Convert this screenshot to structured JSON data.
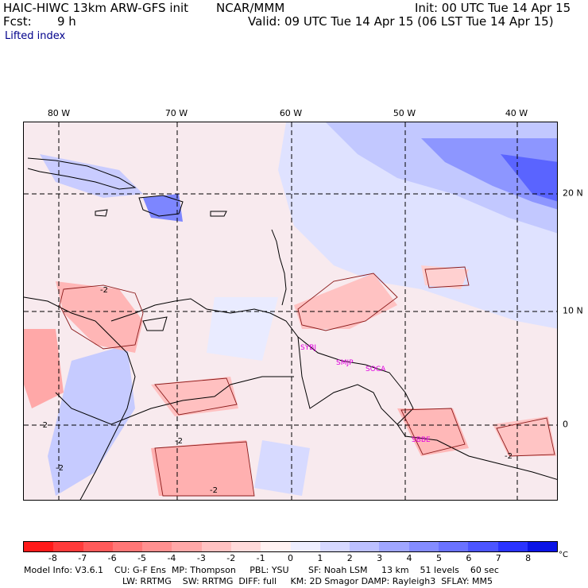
{
  "header": {
    "model": "HAIC-HIWC 13km ARW-GFS init",
    "org": "NCAR/MMM",
    "init": "Init: 00 UTC Tue 14 Apr 15",
    "fcst_label": "Fcst:",
    "fcst_value": "9 h",
    "valid": "Valid: 09 UTC Tue 14 Apr 15 (06 LST Tue 14 Apr 15)",
    "field": "Lifted index"
  },
  "axes": {
    "lon_labels": [
      "80 W",
      "70 W",
      "60 W",
      "50 W",
      "40 W"
    ],
    "lat_labels": [
      "20 N",
      "10 N",
      "0"
    ]
  },
  "contour_labels": [
    "-2",
    "-2",
    "-2",
    "-2",
    "-2",
    "-2"
  ],
  "stations": [
    "SYBJ",
    "SMJP",
    "SOCA",
    "SBBE"
  ],
  "colorbar": {
    "ticks": [
      "-8",
      "-7",
      "-6",
      "-5",
      "-4",
      "-3",
      "-2",
      "-1",
      "0",
      "1",
      "2",
      "3",
      "4",
      "5",
      "6",
      "7",
      "8"
    ],
    "unit": "°C",
    "colors": [
      "#ff1a1a",
      "#ff3b3b",
      "#ff5a5a",
      "#ff7676",
      "#ff9090",
      "#ffa8a8",
      "#ffc2c2",
      "#ffdada",
      "#fff2f2",
      "#eeeeff",
      "#d6d8ff",
      "#bcc0ff",
      "#a0a6ff",
      "#848cff",
      "#6a72ff",
      "#4c55ff",
      "#2a33ff",
      "#0a14e6"
    ]
  },
  "footer": {
    "line1": "Model Info: V3.6.1    CU: G-F Ens  MP: Thompson     PBL: YSU       SF: Noah LSM     13 km    51 levels    60 sec",
    "line2": "LW: RRTMG    SW: RRTMG  DIFF: full     KM: 2D Smagor DAMP: Rayleigh3  SFLAY: MM5"
  }
}
